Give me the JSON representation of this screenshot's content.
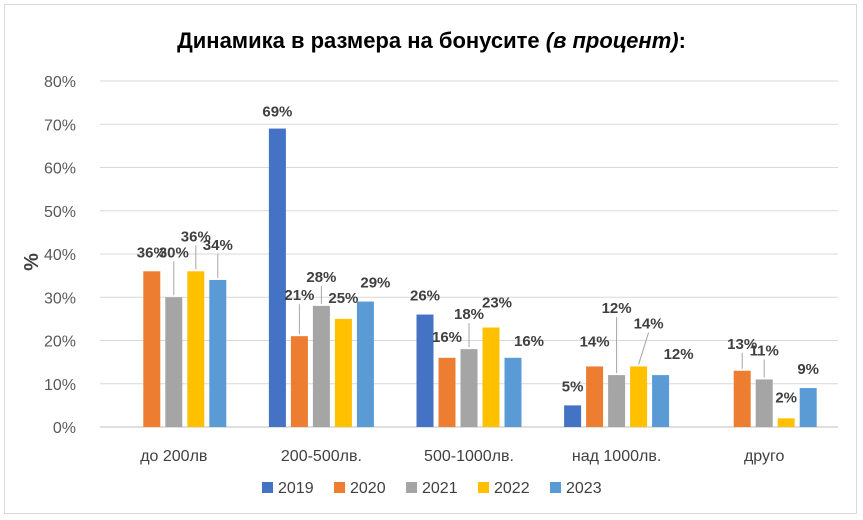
{
  "chart_data": {
    "type": "bar",
    "title_main": "Динамика в размера на бонусите ",
    "title_italic": "(в процент)",
    "title_end": ":",
    "ylabel": "%",
    "xlabel": "",
    "ylim": [
      0,
      80
    ],
    "yticks": [
      "0%",
      "10%",
      "20%",
      "30%",
      "40%",
      "50%",
      "60%",
      "70%",
      "80%"
    ],
    "grid": true,
    "legend_position": "bottom",
    "categories": [
      "до 200лв",
      "200-500лв.",
      "500-1000лв.",
      "над 1000лв.",
      "друго"
    ],
    "series": [
      {
        "name": "2019",
        "color": "#4472C4",
        "values": [
          null,
          69,
          26,
          5,
          null
        ]
      },
      {
        "name": "2020",
        "color": "#ED7D31",
        "values": [
          36,
          21,
          16,
          14,
          13
        ]
      },
      {
        "name": "2021",
        "color": "#A5A5A5",
        "values": [
          30,
          28,
          18,
          12,
          11
        ]
      },
      {
        "name": "2022",
        "color": "#FFC000",
        "values": [
          36,
          25,
          23,
          14,
          2
        ]
      },
      {
        "name": "2023",
        "color": "#5B9BD5",
        "values": [
          34,
          29,
          16,
          12,
          9
        ]
      }
    ]
  }
}
